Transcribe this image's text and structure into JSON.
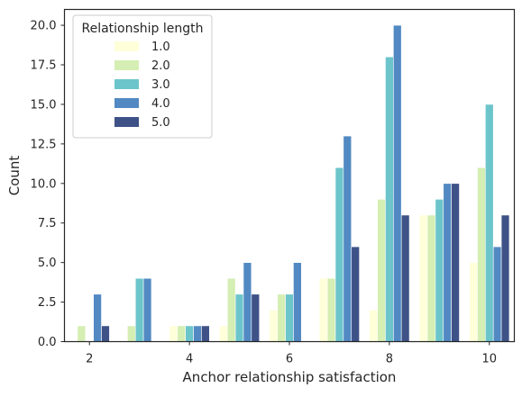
{
  "colors": {
    "series": [
      "#ffffd9",
      "#d5eeb3",
      "#6cc5cb",
      "#5289c3",
      "#3e5287"
    ],
    "axis": "#262626",
    "legend_border": "#cccccc",
    "background": "#ffffff"
  },
  "chart_data": {
    "type": "bar",
    "title": "",
    "xlabel": "Anchor relationship satisfaction",
    "ylabel": "Count",
    "categories": [
      2,
      3,
      4,
      5,
      6,
      7,
      8,
      9,
      10
    ],
    "xticks": [
      "2",
      "4",
      "6",
      "8",
      "10"
    ],
    "ylim": [
      0,
      21
    ],
    "yticks": [
      "0.0",
      "2.5",
      "5.0",
      "7.5",
      "10.0",
      "12.5",
      "15.0",
      "17.5",
      "20.0"
    ],
    "grid": false,
    "legend": {
      "title": "Relationship length",
      "placement": "upper-left"
    },
    "series": [
      {
        "name": "1.0",
        "values": [
          0,
          0,
          1,
          1,
          2,
          4,
          2,
          8,
          5
        ]
      },
      {
        "name": "2.0",
        "values": [
          1,
          1,
          1,
          4,
          3,
          4,
          9,
          8,
          11
        ]
      },
      {
        "name": "3.0",
        "values": [
          0,
          4,
          1,
          3,
          3,
          11,
          18,
          9,
          15
        ]
      },
      {
        "name": "4.0",
        "values": [
          3,
          4,
          1,
          5,
          5,
          13,
          20,
          10,
          6
        ]
      },
      {
        "name": "5.0",
        "values": [
          1,
          0,
          1,
          3,
          0,
          6,
          8,
          10,
          8
        ]
      }
    ]
  }
}
